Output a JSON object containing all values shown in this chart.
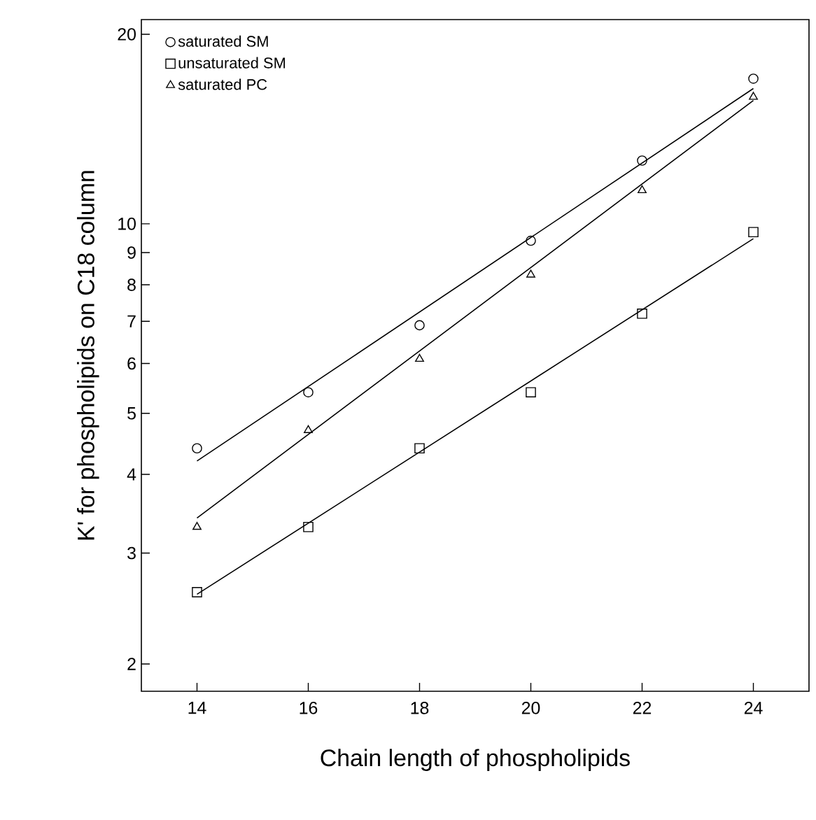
{
  "chart_data": {
    "type": "scatter",
    "xlabel": "Chain length of phospholipids",
    "ylabel": "K' for phospholipids on C18 column",
    "xlim": [
      13,
      25
    ],
    "ylim": [
      1.81,
      21.1
    ],
    "log": "y",
    "xticks": [
      14,
      16,
      18,
      20,
      22,
      24
    ],
    "yticks": [
      2,
      3,
      4,
      5,
      6,
      7,
      8,
      9,
      10,
      20
    ],
    "legend": "top left",
    "series": [
      {
        "name": "saturated SM",
        "marker": "circle",
        "color": "#000000",
        "x": [
          14,
          16,
          18,
          20,
          22,
          24
        ],
        "values": [
          4.4,
          5.4,
          6.9,
          9.4,
          12.6,
          17
        ]
      },
      {
        "name": "unsaturated SM",
        "marker": "square",
        "color": "#000000",
        "x": [
          14,
          16,
          18,
          20,
          22,
          24
        ],
        "values": [
          2.6,
          3.3,
          4.4,
          5.4,
          7.2,
          9.7
        ]
      },
      {
        "name": "saturated PC",
        "marker": "triangle",
        "color": "#000000",
        "x": [
          14,
          16,
          18,
          20,
          22,
          24
        ],
        "values": [
          3.3,
          4.7,
          6.1,
          8.3,
          11.3,
          15.9
        ]
      },
      {
        "type": "line",
        "marker": "none",
        "line_style": "solid",
        "color": "#000000",
        "x": [
          14,
          24
        ],
        "values": [
          4.2,
          16.4
        ]
      },
      {
        "type": "line",
        "marker": "none",
        "line_style": "solid",
        "color": "#000000",
        "x": [
          14,
          24
        ],
        "values": [
          2.58,
          9.47
        ]
      },
      {
        "type": "line",
        "marker": "none",
        "line_style": "solid",
        "color": "#000000",
        "x": [
          14,
          24
        ],
        "values": [
          3.41,
          15.7
        ]
      }
    ]
  }
}
